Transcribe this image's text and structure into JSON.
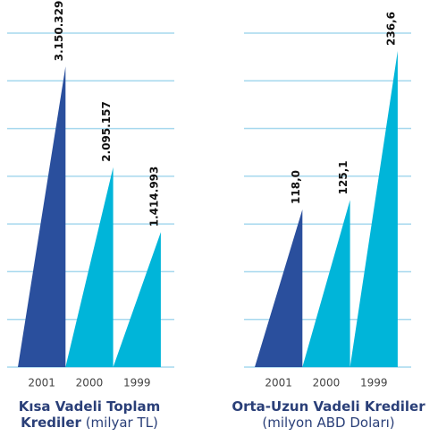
{
  "chart_data": [
    {
      "type": "bar",
      "title": "Kısa Vadeli Toplam Krediler",
      "subtitle": "(milyar TL)",
      "categories": [
        "2001",
        "2000",
        "1999"
      ],
      "values": [
        3150329,
        2095157,
        1414993
      ],
      "value_labels": [
        "3.150.329",
        "2.095.157",
        "1.414.993"
      ],
      "colors": [
        "#2a4f9d",
        "#00b5d9",
        "#00b5d9"
      ],
      "ylim": [
        0,
        3500000
      ],
      "yticks": [
        0,
        500000,
        1000000,
        1500000,
        2000000,
        2500000,
        3000000,
        3500000
      ],
      "grid": true
    },
    {
      "type": "bar",
      "title": "Orta-Uzun Vadeli Krediler",
      "subtitle": "(milyon ABD Doları)",
      "categories": [
        "2001",
        "2000",
        "1999"
      ],
      "values": [
        118,
        125.1,
        236.6
      ],
      "value_labels": [
        "118,0",
        "125,1",
        "236,6"
      ],
      "colors": [
        "#2a4f9d",
        "#00b5d9",
        "#00b5d9"
      ],
      "ylim": [
        0,
        250
      ],
      "yticks": [
        0,
        35.7,
        71.4,
        107.1,
        142.9,
        178.6,
        214.3,
        250
      ],
      "grid": true
    }
  ]
}
